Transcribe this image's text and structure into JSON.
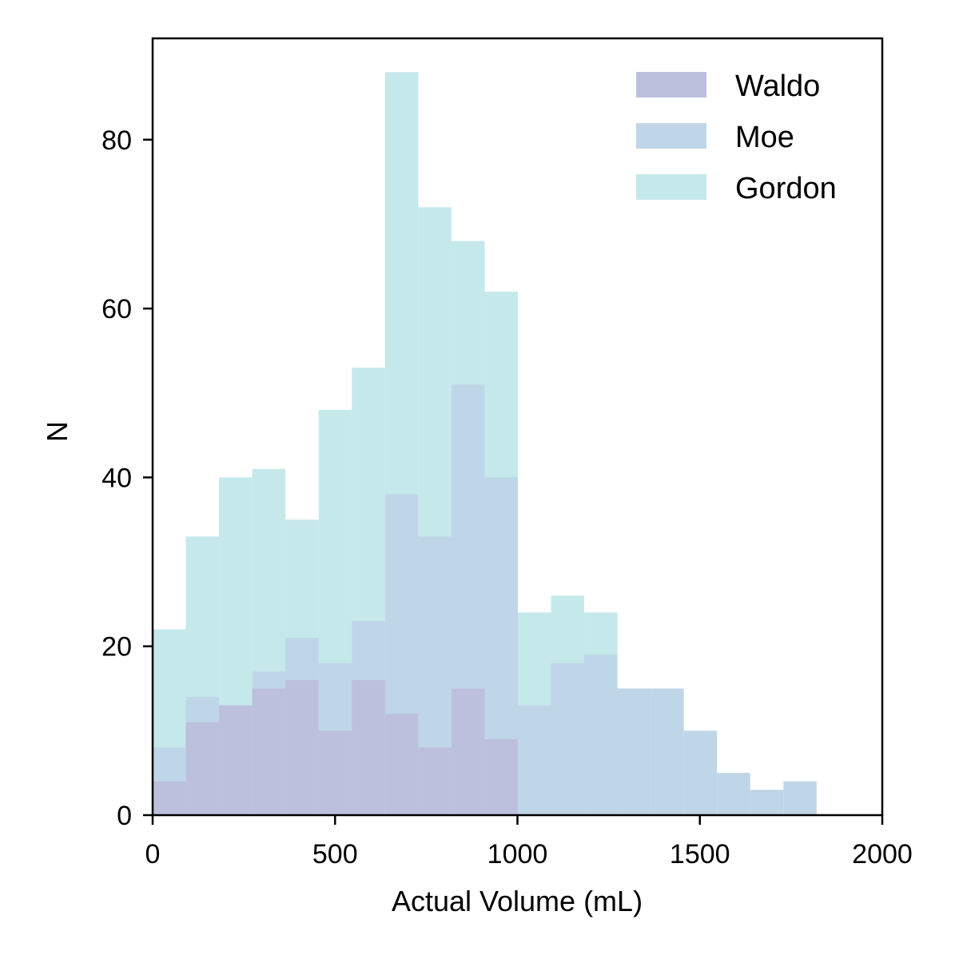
{
  "chart_data": {
    "type": "bar",
    "subtype": "overlaid-histogram",
    "xlabel": "Actual Volume (mL)",
    "ylabel": "N",
    "xlim": [
      0,
      2000
    ],
    "ylim": [
      0,
      92
    ],
    "xticks": [
      0,
      500,
      1000,
      1500,
      2000
    ],
    "yticks": [
      0,
      20,
      40,
      60,
      80
    ],
    "grid": false,
    "legend_position": "top-right",
    "bin_edges": [
      0,
      91,
      182,
      273,
      364,
      455,
      546,
      637,
      728,
      819,
      910,
      1001,
      1092,
      1183,
      1274,
      1365,
      1456,
      1547,
      1638,
      1729,
      1820
    ],
    "series": [
      {
        "name": "Gordon",
        "color": "#c5e8eb",
        "values": [
          22,
          33,
          40,
          41,
          35,
          48,
          53,
          88,
          72,
          68,
          62,
          24,
          26,
          24,
          14,
          0,
          0,
          0,
          0,
          0
        ]
      },
      {
        "name": "Moe",
        "color": "#bfd6e8",
        "values": [
          8,
          14,
          13,
          17,
          21,
          18,
          23,
          38,
          33,
          51,
          40,
          13,
          18,
          19,
          15,
          15,
          10,
          5,
          3,
          4
        ]
      },
      {
        "name": "Waldo",
        "color": "#bcc0dc",
        "values": [
          4,
          11,
          13,
          15,
          16,
          10,
          16,
          12,
          8,
          15,
          9,
          0,
          0,
          0,
          0,
          0,
          0,
          0,
          0,
          0
        ]
      }
    ],
    "legend_order": [
      "Waldo",
      "Moe",
      "Gordon"
    ]
  }
}
